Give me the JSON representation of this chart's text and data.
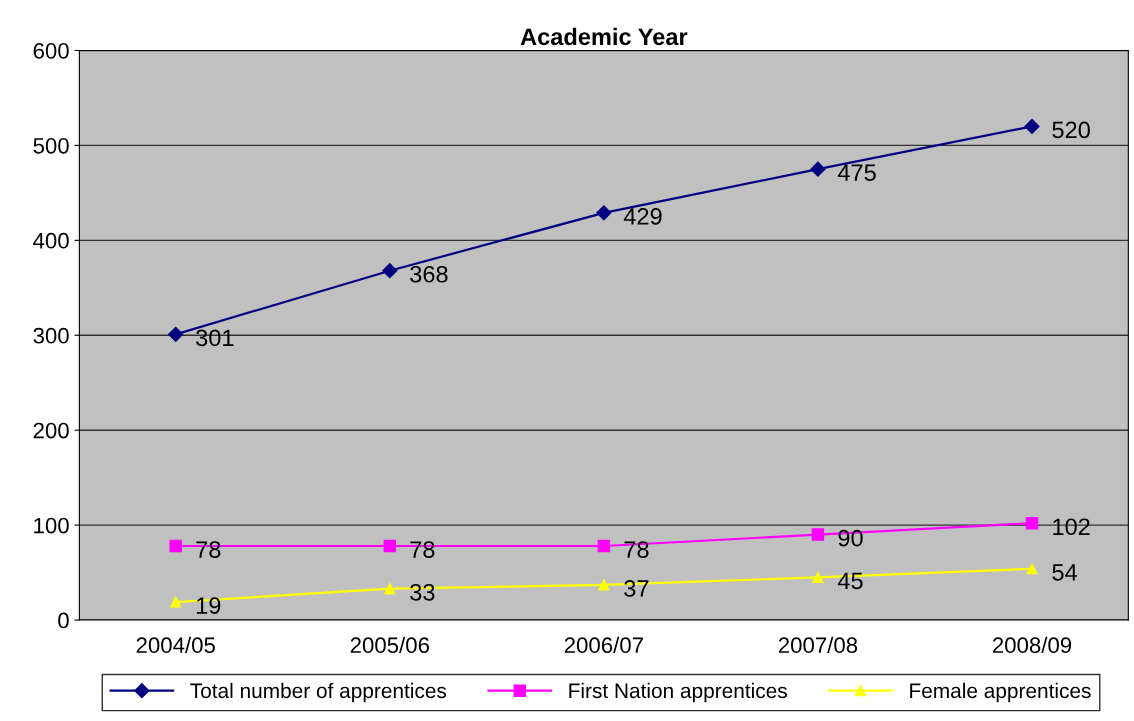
{
  "chart_data": {
    "type": "line",
    "title": "Academic Year",
    "categories": [
      "2004/05",
      "2005/06",
      "2006/07",
      "2007/08",
      "2008/09"
    ],
    "series": [
      {
        "name": "Total number of apprentices",
        "color": "#000080",
        "marker": "diamond",
        "values": [
          301,
          368,
          429,
          475,
          520
        ]
      },
      {
        "name": "First Nation apprentices",
        "color": "#ff00ff",
        "marker": "square",
        "values": [
          78,
          78,
          78,
          90,
          102
        ]
      },
      {
        "name": "Female apprentices",
        "color": "#ffff00",
        "marker": "triangle",
        "values": [
          19,
          33,
          37,
          45,
          54
        ]
      }
    ],
    "ylim": [
      0,
      600
    ],
    "yticks": [
      0,
      100,
      200,
      300,
      400,
      500,
      600
    ],
    "grid": "y",
    "legend": "bottom",
    "data_labels": true,
    "line_style": "solid"
  }
}
